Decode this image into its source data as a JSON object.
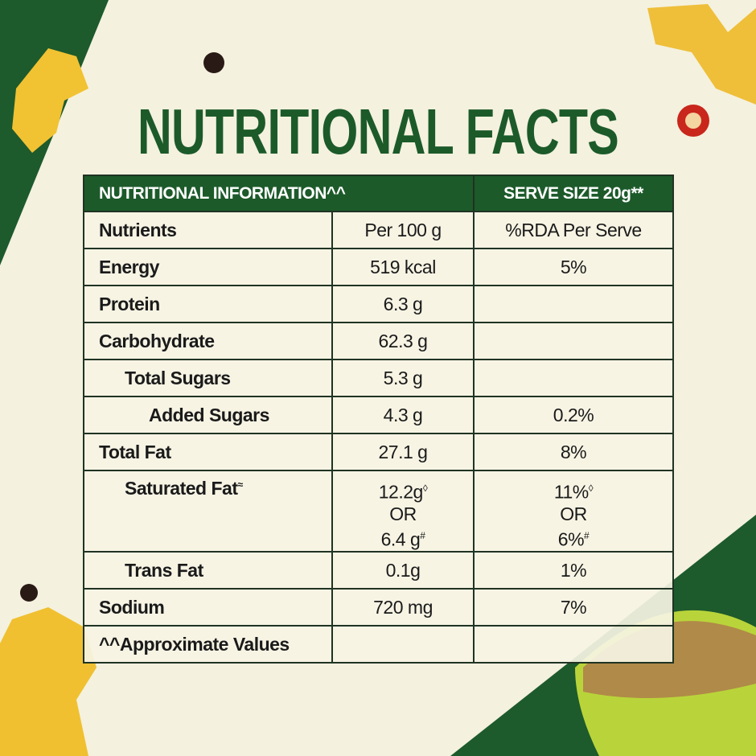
{
  "title": "NUTRITIONAL FACTS",
  "table": {
    "header": [
      "NUTRITIONAL INFORMATION^^",
      "SERVE SIZE 20g**"
    ],
    "rows": [
      [
        "Nutrients",
        "Per 100 g",
        "%RDA Per Serve"
      ],
      [
        "Energy",
        "519 kcal",
        "5%"
      ],
      [
        "Protein",
        "6.3 g"
      ],
      [
        "Carbohydrate",
        "62.3 g"
      ],
      [
        "Total Sugars",
        "5.3 g"
      ],
      [
        "Added Sugars",
        "4.3 g",
        "0.2%"
      ],
      [
        "Total Fat",
        "27.1 g",
        "8%"
      ],
      [
        {
          "text": "Saturated Fat",
          "sup": "≈"
        },
        {
          "lines": [
            {
              "text": "12.2g",
              "sup": "◊"
            },
            {
              "text": "OR"
            },
            {
              "text": "6.4 g",
              "sup": "#"
            }
          ]
        },
        {
          "lines": [
            {
              "text": "11%",
              "sup": "◊"
            },
            {
              "text": "OR"
            },
            {
              "text": "6%",
              "sup": "#"
            }
          ]
        }
      ],
      [
        "Trans Fat",
        "0.1g",
        "1%"
      ],
      [
        "Sodium",
        "720 mg",
        "7%"
      ],
      [
        "^^Approximate Values"
      ]
    ]
  }
}
